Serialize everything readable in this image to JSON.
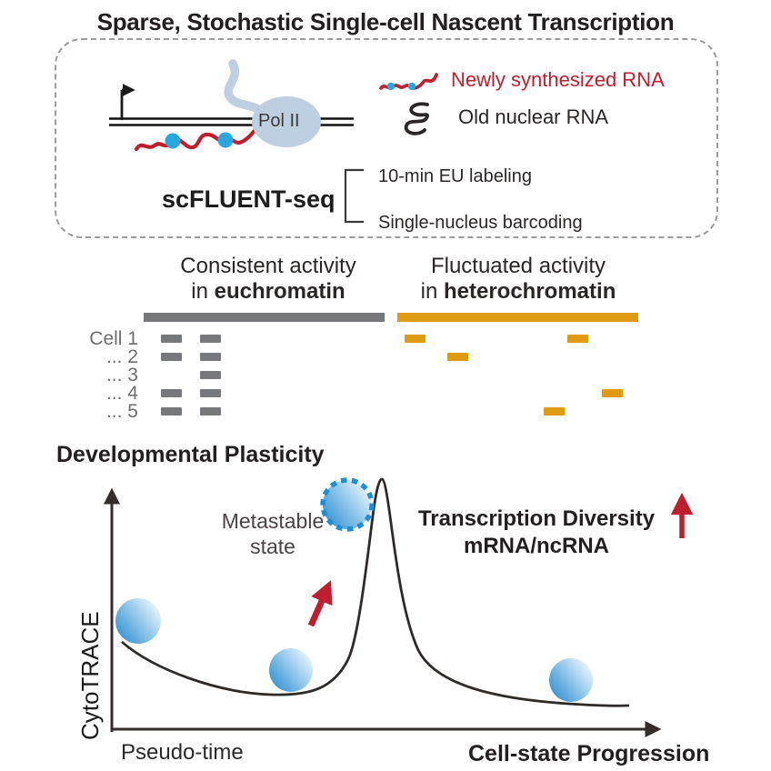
{
  "colors": {
    "ink": "#231f20",
    "gray": "#77787b",
    "label_gray": "#6d6e71",
    "orange": "#df9c12",
    "red": "#be1e2d",
    "blue_dot": "#29a8e0",
    "polii_blue": "#bfcfe2",
    "sphere_blue": "#2f8fd2",
    "dashed_circle_blue": "#1c8fd6",
    "box_border": "#9b9b9b"
  },
  "header": {
    "title": "Sparse, Stochastic Single-cell Nascent Transcription"
  },
  "method_box": {
    "polii_label": "Pol II",
    "legend": {
      "newly_synthesized": "Newly synthesized RNA",
      "old_nuclear": "Old nuclear RNA"
    },
    "method_name": "scFLUENT-seq",
    "steps": {
      "step1": "10-min EU labeling",
      "step2": "Single-nucleus barcoding"
    }
  },
  "activity_panel": {
    "euchromatin": {
      "title_line1": "Consistent activity",
      "title_line2_prefix": "in ",
      "title_line2_bold": "euchromatin",
      "bar_color": "#77787b",
      "rows": [
        [
          0.072,
          0.234
        ],
        [
          0.072,
          0.234
        ],
        [
          0.234
        ],
        [
          0.072,
          0.234
        ],
        [
          0.072,
          0.234
        ]
      ]
    },
    "heterochromatin": {
      "title_line1": "Fluctuated activity",
      "title_line2_prefix": "in ",
      "title_line2_bold": "heterochromatin",
      "bar_color": "#df9c12",
      "rows": [
        [
          0.03,
          0.706
        ],
        [
          0.208
        ],
        [],
        [
          0.849
        ],
        [
          0.608
        ]
      ]
    },
    "cell_labels": [
      "Cell 1",
      "... 2",
      "... 3",
      "... 4",
      "... 5"
    ]
  },
  "plasticity_panel": {
    "title": "Developmental Plasticity",
    "y_axis_label": "CytoTRACE",
    "x_axis_label_left": "Pseudo-time",
    "x_axis_label_right": "Cell-state Progression",
    "metastable_line1": "Metastable",
    "metastable_line2": "state",
    "diversity_line1": "Transcription Diversity",
    "diversity_line2": "mRNA/ncRNA"
  },
  "chart_data": {
    "type": "line",
    "title": "Developmental Plasticity",
    "ylabel": "CytoTRACE",
    "xlabel": "Pseudo-time → Cell-state Progression",
    "x": [
      0.02,
      0.1,
      0.2,
      0.29,
      0.37,
      0.44,
      0.49,
      0.54,
      0.6,
      0.7,
      0.82,
      0.94
    ],
    "y": [
      0.36,
      0.22,
      0.13,
      0.11,
      0.18,
      0.62,
      1.0,
      0.52,
      0.3,
      0.16,
      0.11,
      0.1
    ],
    "markers": {
      "cell_spheres_x": [
        0.05,
        0.33,
        0.84
      ],
      "metastable_sphere_xy": [
        0.43,
        0.93
      ]
    },
    "annotations": [
      "Metastable state",
      "Transcription Diversity mRNA/ncRNA ↑"
    ],
    "grid": false,
    "legend_position": "none"
  }
}
